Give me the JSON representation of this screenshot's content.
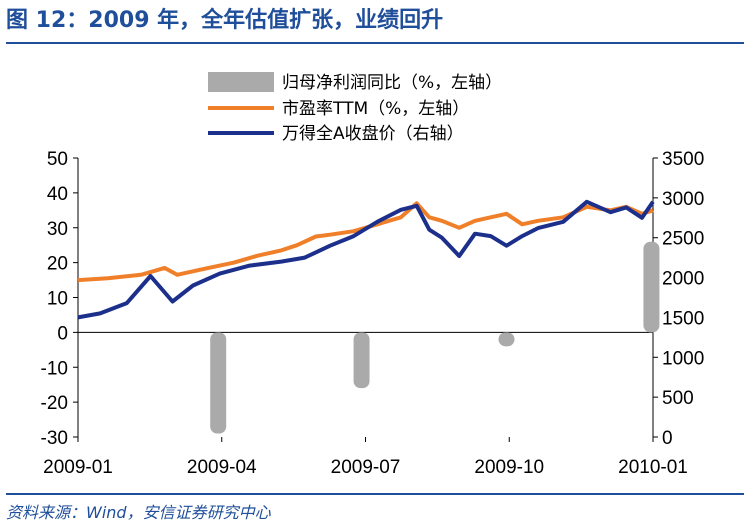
{
  "header": {
    "title": "图 12：2009 年，全年估值扩张，业绩回升"
  },
  "footer": {
    "source": "资料来源：Wind，安信证券研究中心"
  },
  "colors": {
    "bar": "#aaaaaa",
    "pe": "#f07f2a",
    "index": "#1c2f8a",
    "accent": "#1f4e9a"
  },
  "chart_data": {
    "type": "bar+line",
    "x_ticks": [
      "2009-01",
      "2009-04",
      "2009-07",
      "2009-10",
      "2010-01"
    ],
    "x_range": [
      "2009-01-01",
      "2010-01-01"
    ],
    "left_axis": {
      "ticks": [
        "50",
        "40",
        "30",
        "20",
        "10",
        "0",
        "-10",
        "-20",
        "-30"
      ],
      "range": [
        -30,
        50
      ]
    },
    "right_axis": {
      "ticks": [
        "3500",
        "3000",
        "2500",
        "2000",
        "1500",
        "1000",
        "500",
        "0"
      ],
      "range": [
        0,
        3500
      ]
    },
    "legend": [
      {
        "label": "归母净利润同比（%，左轴）",
        "type": "bar"
      },
      {
        "label": "市盈率TTM（%，左轴）",
        "type": "line"
      },
      {
        "label": "万得全A收盘价（右轴）",
        "type": "line"
      }
    ],
    "series": [
      {
        "name": "归母净利润同比（%，左轴）",
        "axis": "left",
        "type": "bar",
        "points": [
          [
            "2009-03-31",
            -29
          ],
          [
            "2009-06-30",
            -16
          ],
          [
            "2009-09-30",
            -4
          ],
          [
            "2009-12-31",
            26
          ]
        ]
      },
      {
        "name": "市盈率TTM（%，左轴）",
        "axis": "left",
        "type": "line",
        "points": [
          [
            "2009-01-01",
            15
          ],
          [
            "2009-01-20",
            15.5
          ],
          [
            "2009-02-10",
            16.5
          ],
          [
            "2009-02-25",
            18.5
          ],
          [
            "2009-03-05",
            16.5
          ],
          [
            "2009-03-20",
            18
          ],
          [
            "2009-04-10",
            20
          ],
          [
            "2009-04-25",
            22
          ],
          [
            "2009-05-10",
            23.5
          ],
          [
            "2009-05-20",
            25
          ],
          [
            "2009-06-01",
            27.5
          ],
          [
            "2009-06-10",
            28
          ],
          [
            "2009-06-25",
            29
          ],
          [
            "2009-07-10",
            31
          ],
          [
            "2009-07-25",
            33
          ],
          [
            "2009-08-04",
            37
          ],
          [
            "2009-08-12",
            33
          ],
          [
            "2009-08-20",
            32
          ],
          [
            "2009-08-31",
            30
          ],
          [
            "2009-09-10",
            32
          ],
          [
            "2009-09-20",
            33
          ],
          [
            "2009-09-30",
            34
          ],
          [
            "2009-10-10",
            31
          ],
          [
            "2009-10-20",
            32
          ],
          [
            "2009-11-05",
            33
          ],
          [
            "2009-11-20",
            36
          ],
          [
            "2009-12-05",
            35
          ],
          [
            "2009-12-15",
            36
          ],
          [
            "2009-12-25",
            34
          ],
          [
            "2010-01-01",
            35
          ]
        ]
      },
      {
        "name": "万得全A收盘价（右轴）",
        "axis": "right",
        "type": "line",
        "points": [
          [
            "2009-01-01",
            1500
          ],
          [
            "2009-01-15",
            1550
          ],
          [
            "2009-02-01",
            1680
          ],
          [
            "2009-02-16",
            2020
          ],
          [
            "2009-03-02",
            1700
          ],
          [
            "2009-03-15",
            1900
          ],
          [
            "2009-04-01",
            2050
          ],
          [
            "2009-04-20",
            2150
          ],
          [
            "2009-05-10",
            2200
          ],
          [
            "2009-05-25",
            2250
          ],
          [
            "2009-06-10",
            2400
          ],
          [
            "2009-06-25",
            2520
          ],
          [
            "2009-07-10",
            2700
          ],
          [
            "2009-07-25",
            2850
          ],
          [
            "2009-08-04",
            2900
          ],
          [
            "2009-08-12",
            2600
          ],
          [
            "2009-08-20",
            2500
          ],
          [
            "2009-08-31",
            2270
          ],
          [
            "2009-09-10",
            2550
          ],
          [
            "2009-09-20",
            2520
          ],
          [
            "2009-09-30",
            2400
          ],
          [
            "2009-10-10",
            2520
          ],
          [
            "2009-10-20",
            2620
          ],
          [
            "2009-11-05",
            2700
          ],
          [
            "2009-11-20",
            2950
          ],
          [
            "2009-12-05",
            2820
          ],
          [
            "2009-12-15",
            2880
          ],
          [
            "2009-12-25",
            2750
          ],
          [
            "2010-01-01",
            2950
          ]
        ]
      }
    ]
  }
}
